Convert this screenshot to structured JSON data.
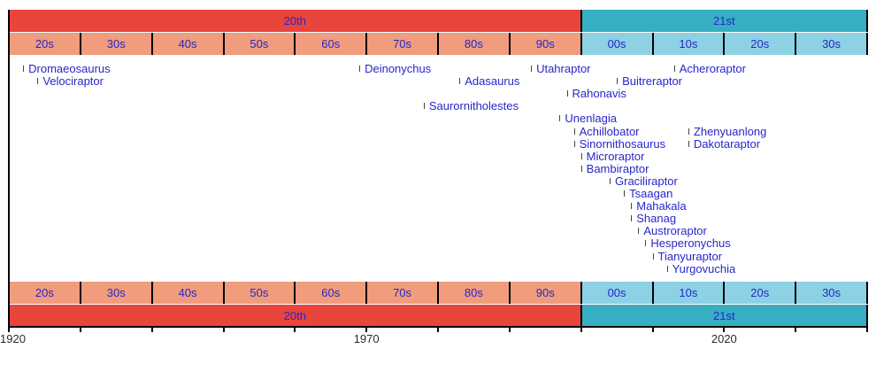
{
  "chart_data": {
    "type": "timeline",
    "x_axis": {
      "start_year": 1920,
      "end_year": 2040,
      "tick_step_years": 10,
      "year_labels": [
        {
          "year": 1920,
          "label": "1920"
        },
        {
          "year": 1970,
          "label": "1970"
        },
        {
          "year": 2020,
          "label": "2020"
        }
      ]
    },
    "century_bands": [
      {
        "label": "20th",
        "start_year": 1920,
        "end_year": 2000,
        "color": "#E8453C"
      },
      {
        "label": "21st",
        "start_year": 2000,
        "end_year": 2040,
        "color": "#36AFC2"
      }
    ],
    "decade_bands": [
      {
        "label": "20s",
        "start_year": 1920,
        "end_year": 1930,
        "color": "#F09C7D"
      },
      {
        "label": "30s",
        "start_year": 1930,
        "end_year": 1940,
        "color": "#F09C7D"
      },
      {
        "label": "40s",
        "start_year": 1940,
        "end_year": 1950,
        "color": "#F09C7D"
      },
      {
        "label": "50s",
        "start_year": 1950,
        "end_year": 1960,
        "color": "#F09C7D"
      },
      {
        "label": "60s",
        "start_year": 1960,
        "end_year": 1970,
        "color": "#F09C7D"
      },
      {
        "label": "70s",
        "start_year": 1970,
        "end_year": 1980,
        "color": "#F09C7D"
      },
      {
        "label": "80s",
        "start_year": 1980,
        "end_year": 1990,
        "color": "#F09C7D"
      },
      {
        "label": "90s",
        "start_year": 1990,
        "end_year": 2000,
        "color": "#F09C7D"
      },
      {
        "label": "00s",
        "start_year": 2000,
        "end_year": 2010,
        "color": "#8DD2E4"
      },
      {
        "label": "10s",
        "start_year": 2010,
        "end_year": 2020,
        "color": "#8DD2E4"
      },
      {
        "label": "20s",
        "start_year": 2020,
        "end_year": 2030,
        "color": "#8DD2E4"
      },
      {
        "label": "30s",
        "start_year": 2030,
        "end_year": 2040,
        "color": "#8DD2E4"
      }
    ],
    "taxa": [
      {
        "name": "Dromaeosaurus",
        "year": 1922,
        "row": 0
      },
      {
        "name": "Velociraptor",
        "year": 1924,
        "row": 1
      },
      {
        "name": "Deinonychus",
        "year": 1969,
        "row": 0
      },
      {
        "name": "Saurornitholestes",
        "year": 1978,
        "row": 3
      },
      {
        "name": "Adasaurus",
        "year": 1983,
        "row": 1
      },
      {
        "name": "Utahraptor",
        "year": 1993,
        "row": 0
      },
      {
        "name": "Unenlagia",
        "year": 1997,
        "row": 4
      },
      {
        "name": "Rahonavis",
        "year": 1998,
        "row": 2
      },
      {
        "name": "Achillobator",
        "year": 1999,
        "row": 5
      },
      {
        "name": "Sinornithosaurus",
        "year": 1999,
        "row": 6
      },
      {
        "name": "Microraptor",
        "year": 2000,
        "row": 7
      },
      {
        "name": "Bambiraptor",
        "year": 2000,
        "row": 8
      },
      {
        "name": "Graciliraptor",
        "year": 2004,
        "row": 9
      },
      {
        "name": "Buitreraptor",
        "year": 2005,
        "row": 1
      },
      {
        "name": "Tsaagan",
        "year": 2006,
        "row": 10
      },
      {
        "name": "Mahakala",
        "year": 2007,
        "row": 11
      },
      {
        "name": "Shanag",
        "year": 2007,
        "row": 12
      },
      {
        "name": "Austroraptor",
        "year": 2008,
        "row": 13
      },
      {
        "name": "Hesperonychus",
        "year": 2009,
        "row": 14
      },
      {
        "name": "Tianyuraptor",
        "year": 2010,
        "row": 15
      },
      {
        "name": "Yurgovuchia",
        "year": 2012,
        "row": 16
      },
      {
        "name": "Acheroraptor",
        "year": 2013,
        "row": 0
      },
      {
        "name": "Zhenyuanlong",
        "year": 2015,
        "row": 5
      },
      {
        "name": "Dakotaraptor",
        "year": 2015,
        "row": 6
      }
    ]
  },
  "colors": {
    "background": "#FFFFFF",
    "band_text": "#2626CB",
    "taxon_text": "#2626CB",
    "taxon_tick": "#444444",
    "axis_text": "#2B2B2B",
    "line": "#000000"
  }
}
